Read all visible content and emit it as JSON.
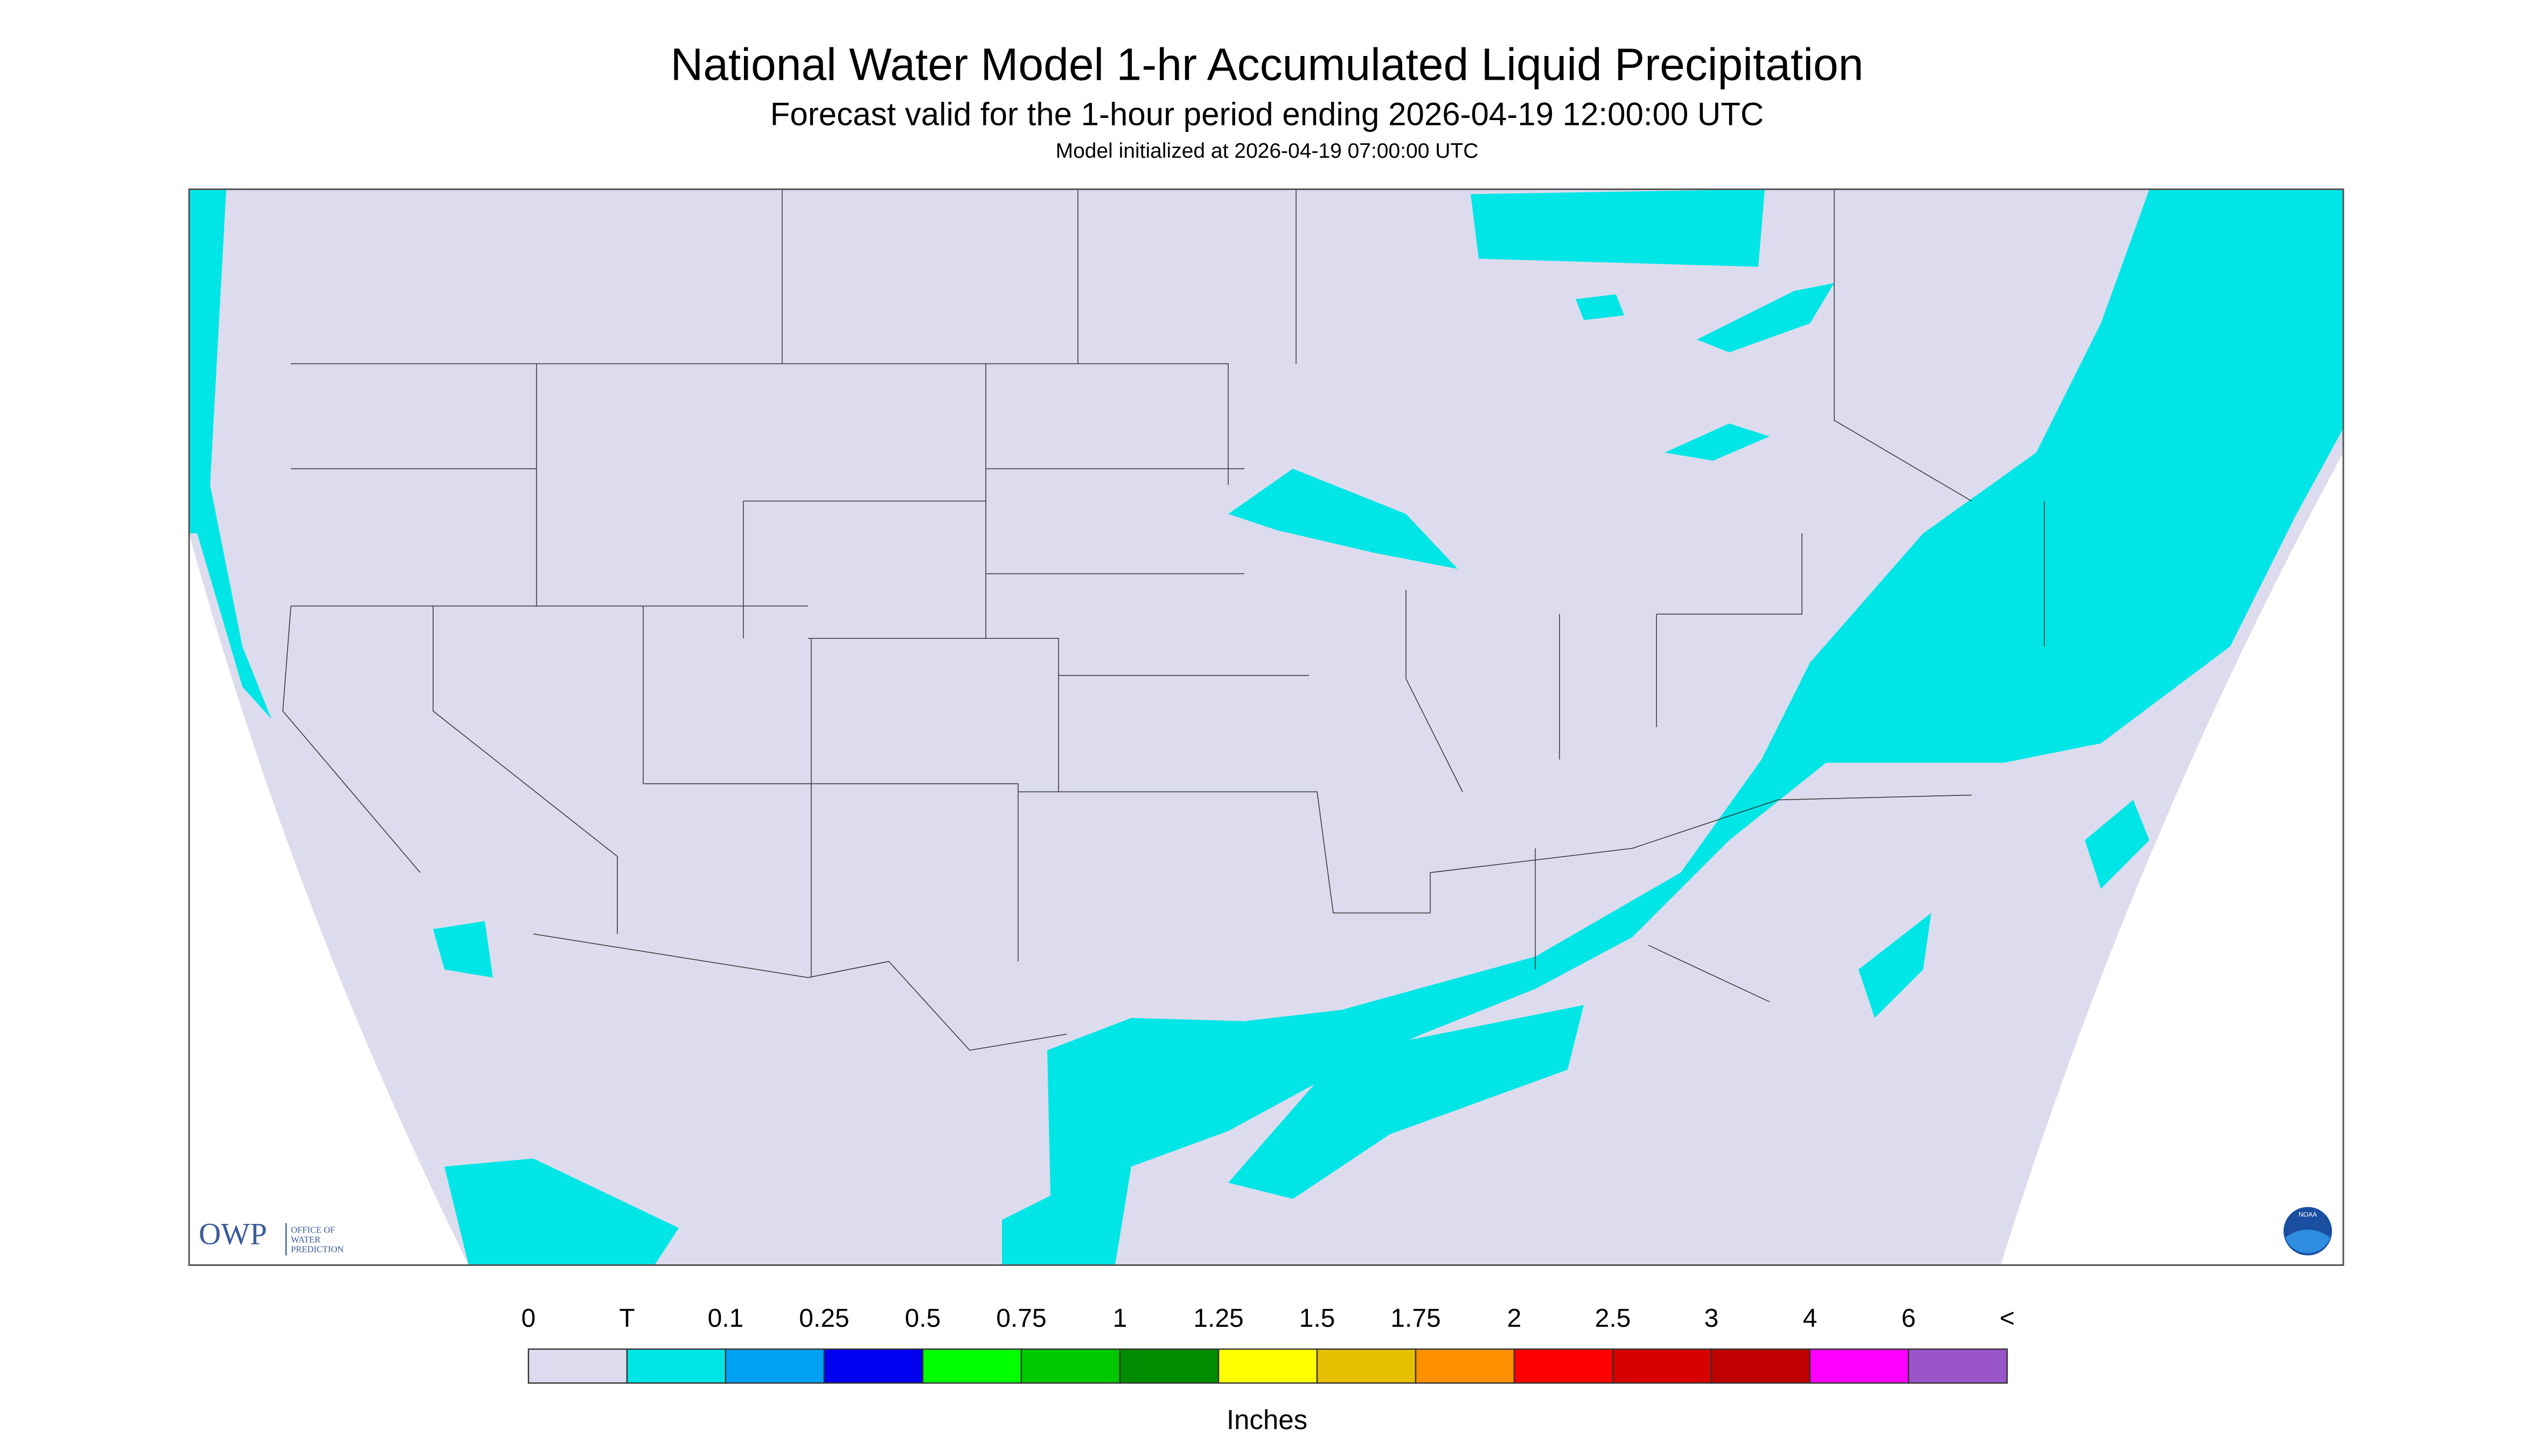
{
  "header": {
    "title": "National Water Model 1-hr Accumulated Liquid Precipitation",
    "subtitle": "Forecast valid for the 1-hour period ending 2026-04-19 12:00:00 UTC",
    "note": "Model initialized at 2026-04-19 07:00:00 UTC"
  },
  "logo": {
    "text": "OWP",
    "lines": [
      "OFFICE OF",
      "WATER",
      "PREDICTION"
    ],
    "badge": "NOAA"
  },
  "legend": {
    "labels": [
      "0",
      "T",
      "0.1",
      "0.25",
      "0.5",
      "0.75",
      "1",
      "1.25",
      "1.5",
      "1.75",
      "2",
      "2.5",
      "3",
      "4",
      "6",
      "<"
    ],
    "colors": [
      "#dcdcee",
      "#00e6e6",
      "#00a0f5",
      "#0000f0",
      "#00ff00",
      "#00c800",
      "#008c00",
      "#ffff00",
      "#e6c000",
      "#ff9000",
      "#ff0000",
      "#d60000",
      "#c00000",
      "#ff00ff",
      "#9955c9"
    ],
    "unit": "Inches"
  }
}
